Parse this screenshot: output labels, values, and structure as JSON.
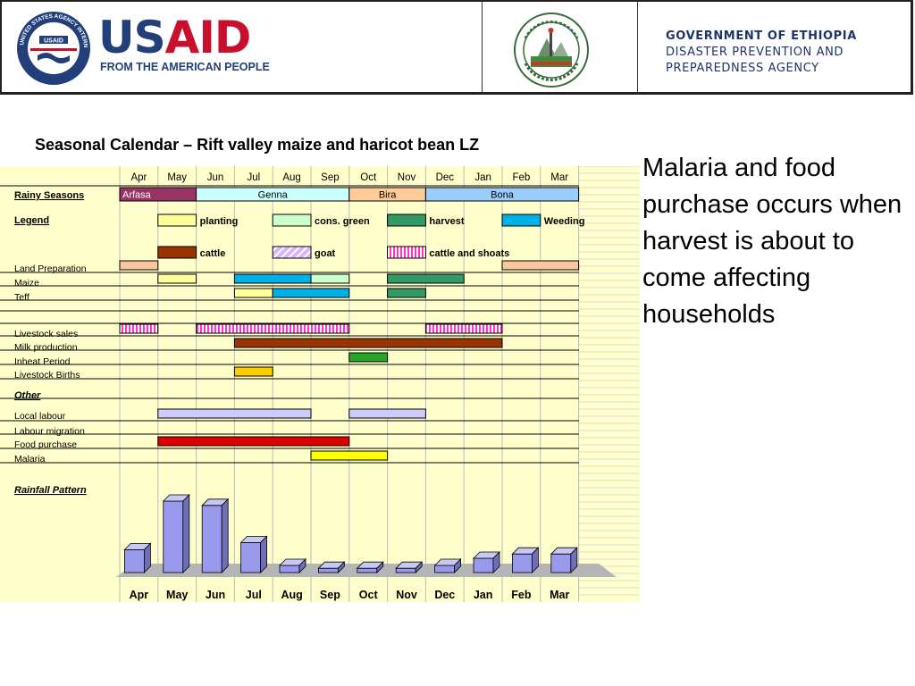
{
  "header": {
    "usaid_word_us": "US",
    "usaid_word_aid": "AID",
    "usaid_tagline": "FROM THE AMERICAN PEOPLE",
    "seal_text": "UNITED STATES AGENCY INTERNATIONAL DEVELOPMENT",
    "gov_line1": "GOVERNMENT OF ETHIOPIA",
    "gov_line2": "DISASTER PREVENTION AND",
    "gov_line3": "PREPAREDNESS AGENCY"
  },
  "title": "Seasonal Calendar – Rift valley maize and haricot bean LZ",
  "side_text": "Malaria and food purchase occurs when harvest is about to come affecting households",
  "months": [
    "Apr",
    "May",
    "Jun",
    "Jul",
    "Aug",
    "Sep",
    "Oct",
    "Nov",
    "Dec",
    "Jan",
    "Feb",
    "Mar"
  ],
  "colors": {
    "background": "#ffffcc",
    "planting": "#ffff99",
    "cons_green": "#ccffcc",
    "harvest": "#339966",
    "weeding": "#00b0e8",
    "cattle": "#993300",
    "goat": "#d9b3ff",
    "shoats": "#ff33cc",
    "land_prep": "#f9c79c",
    "arfasa": "#993366",
    "genna": "#ccffff",
    "bira": "#ffcc99",
    "bona": "#99ccff",
    "inheat": "#2aa52a",
    "births": "#ffcc00",
    "labour": "#ccccff",
    "food_purchase": "#dd0000",
    "malaria": "#ffff00",
    "rain_bar": "#9999ee"
  },
  "rainy_seasons": {
    "label": "Rainy Seasons",
    "seasons": [
      {
        "name": "Arfasa",
        "start": 0,
        "end": 2,
        "color": "arfasa"
      },
      {
        "name": "Genna",
        "start": 2,
        "end": 6,
        "color": "genna"
      },
      {
        "name": "Bira",
        "start": 6,
        "end": 8,
        "color": "bira"
      },
      {
        "name": "Bona",
        "start": 8,
        "end": 12,
        "color": "bona"
      }
    ]
  },
  "legend": {
    "label": "Legend",
    "items": [
      {
        "label": "planting",
        "color": "planting"
      },
      {
        "label": "cons. green",
        "color": "cons_green"
      },
      {
        "label": "harvest",
        "color": "harvest"
      },
      {
        "label": "Weeding",
        "color": "weeding"
      },
      {
        "label": "cattle",
        "color": "cattle"
      },
      {
        "label": "goat",
        "color": "goat"
      },
      {
        "label": "cattle and shoats",
        "color": "shoats"
      }
    ]
  },
  "activities": [
    {
      "label": "Land Preparation",
      "bars": [
        {
          "start": 0,
          "end": 1,
          "color": "land_prep"
        },
        {
          "start": 10,
          "end": 12,
          "color": "land_prep"
        }
      ]
    },
    {
      "label": "Maize",
      "bars": [
        {
          "start": 1,
          "end": 2,
          "color": "planting"
        },
        {
          "start": 3,
          "end": 5,
          "color": "weeding"
        },
        {
          "start": 5,
          "end": 6,
          "color": "cons_green"
        },
        {
          "start": 7,
          "end": 9,
          "color": "harvest"
        }
      ]
    },
    {
      "label": "Teff",
      "bars": [
        {
          "start": 3,
          "end": 4,
          "color": "planting"
        },
        {
          "start": 4,
          "end": 6,
          "color": "weeding"
        },
        {
          "start": 7,
          "end": 8,
          "color": "harvest"
        }
      ]
    },
    {
      "label": "Livestock sales",
      "bars": [
        {
          "start": 0,
          "end": 1,
          "color": "shoats"
        },
        {
          "start": 2,
          "end": 6,
          "color": "shoats"
        },
        {
          "start": 8,
          "end": 10,
          "color": "shoats"
        }
      ]
    },
    {
      "label": "Milk production",
      "bars": [
        {
          "start": 3,
          "end": 10,
          "color": "cattle"
        }
      ]
    },
    {
      "label": "Inheat Period",
      "bars": [
        {
          "start": 6,
          "end": 7,
          "color": "inheat"
        }
      ]
    },
    {
      "label": "Livestock Births",
      "bars": [
        {
          "start": 3,
          "end": 4,
          "color": "births"
        }
      ]
    },
    {
      "label": "Other",
      "bars": []
    },
    {
      "label": "Local labour",
      "bars": [
        {
          "start": 1,
          "end": 5,
          "color": "labour"
        },
        {
          "start": 6,
          "end": 8,
          "color": "labour"
        }
      ]
    },
    {
      "label": "Labour migration",
      "bars": []
    },
    {
      "label": "Food purchase",
      "bars": [
        {
          "start": 1,
          "end": 6,
          "color": "food_purchase"
        }
      ]
    },
    {
      "label": "Malaria",
      "bars": [
        {
          "start": 5,
          "end": 7,
          "color": "malaria"
        }
      ]
    }
  ],
  "rainfall_label": "Rainfall Pattern",
  "rainfall_relative": [
    0.32,
    1.0,
    0.94,
    0.42,
    0.1,
    0.06,
    0.06,
    0.06,
    0.1,
    0.2,
    0.26,
    0.26
  ]
}
